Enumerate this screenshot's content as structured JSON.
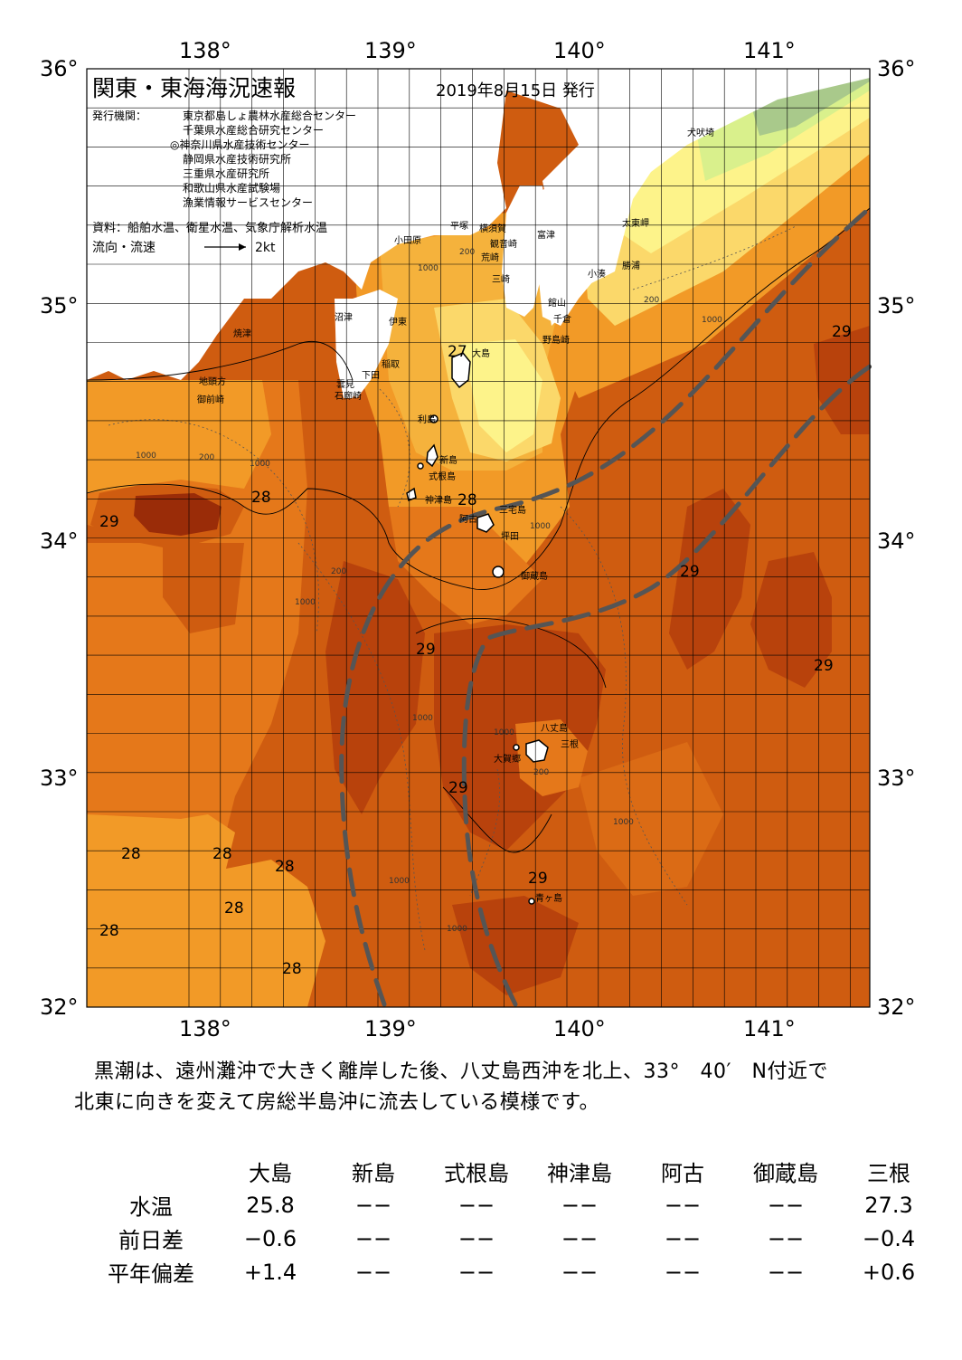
{
  "header": {
    "title": "関東・東海海況速報",
    "date": "2019年8月15日 発行",
    "publisher_label": "発行機関：",
    "publishers": [
      "東京都島しょ農林水産総合センター",
      "千葉県水産総合研究センター",
      "◎神奈川県水産技術センター",
      "静岡県水産技術研究所",
      "三重県水産研究所",
      "和歌山県水産試験場",
      "漁業情報サービスセンター"
    ],
    "sources": "資料：船舶水温、衛星水温、気象庁解析水温",
    "flow_label": "流向・流速",
    "flow_scale": "2kt"
  },
  "axes": {
    "lon_ticks": [
      "138°",
      "139°",
      "140°",
      "141°"
    ],
    "lat_ticks": [
      "36°",
      "35°",
      "34°",
      "33°",
      "32°"
    ]
  },
  "places": [
    "犬吠埼",
    "太東岬",
    "勝浦",
    "小湊",
    "富津",
    "横須賀",
    "観音崎",
    "荒崎",
    "三崎",
    "館山",
    "千倉",
    "野島崎",
    "平塚",
    "小田原",
    "沼津",
    "伊東",
    "焼津",
    "稲取",
    "下田",
    "雲見",
    "石廊崎",
    "地頭方",
    "御前崎",
    "大島",
    "利島",
    "新島",
    "式根島",
    "神津島",
    "三宅島",
    "阿古",
    "坪田",
    "御蔵島",
    "八丈島",
    "三根",
    "大賀郷",
    "青ヶ島"
  ],
  "temperature_labels": [
    "27",
    "28",
    "29"
  ],
  "depth_labels": [
    "200",
    "1000"
  ],
  "colors": {
    "t24": "#a9c98b",
    "t25": "#d9f08c",
    "t26": "#fdf38a",
    "t27": "#fbd86a",
    "t27_5": "#f5b23c",
    "t28": "#f29a27",
    "t28_5": "#e5781a",
    "t29": "#cf5c10",
    "t29_5": "#b8420c",
    "t30": "#9a2c08",
    "kuroshio": "#555555"
  },
  "summary": {
    "line1": "黒潮は、遠州灘沖で大きく離岸した後、八丈島西沖を北上、33°　40′　N付近で",
    "line2": "北東に向きを変えて房総半島沖に流去している模様です。"
  },
  "table": {
    "columns": [
      "大島",
      "新島",
      "式根島",
      "神津島",
      "阿古",
      "御蔵島",
      "三根"
    ],
    "rows": [
      {
        "label": "水温",
        "values": [
          "25.8",
          "−−",
          "−−",
          "−−",
          "−−",
          "−−",
          "27.3"
        ]
      },
      {
        "label": "前日差",
        "values": [
          "−0.6",
          "−−",
          "−−",
          "−−",
          "−−",
          "−−",
          "−0.4"
        ]
      },
      {
        "label": "平年偏差",
        "values": [
          "+1.4",
          "−−",
          "−−",
          "−−",
          "−−",
          "−−",
          "+0.6"
        ]
      }
    ]
  }
}
